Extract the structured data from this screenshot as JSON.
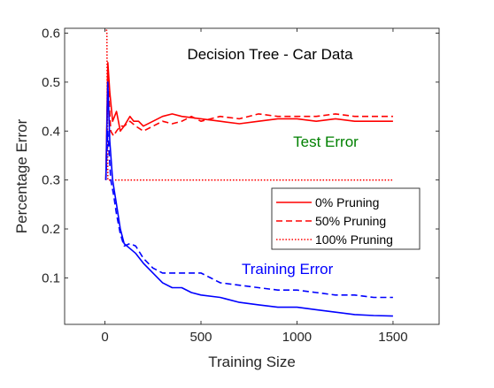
{
  "chart_data": {
    "type": "line",
    "title": "Decision Tree - Car Data",
    "xlabel": "Training Size",
    "ylabel": "Percentage Error",
    "xlim": [
      -210,
      1740
    ],
    "ylim": [
      0.005,
      0.61
    ],
    "xticks": [
      0,
      500,
      1000,
      1500
    ],
    "yticks": [
      0.1,
      0.2,
      0.3,
      0.4,
      0.5,
      0.6
    ],
    "grid": false,
    "legend_position": "right",
    "annotations": [
      {
        "text": "Test Error",
        "x": 1150,
        "y": 0.368,
        "color": "#008000"
      },
      {
        "text": "Training Error",
        "x": 950,
        "y": 0.108,
        "color": "#0000ff"
      }
    ],
    "series": [
      {
        "name": "0% Pruning",
        "group": "test",
        "color": "#ff0000",
        "dash": "solid",
        "x": [
          5,
          15,
          25,
          40,
          60,
          80,
          100,
          130,
          150,
          175,
          200,
          250,
          300,
          350,
          400,
          500,
          600,
          700,
          800,
          900,
          1000,
          1100,
          1200,
          1300,
          1400,
          1500
        ],
        "y": [
          0.3,
          0.54,
          0.48,
          0.42,
          0.44,
          0.4,
          0.41,
          0.43,
          0.42,
          0.42,
          0.41,
          0.42,
          0.43,
          0.435,
          0.43,
          0.425,
          0.42,
          0.415,
          0.42,
          0.425,
          0.425,
          0.42,
          0.425,
          0.42,
          0.42,
          0.42
        ]
      },
      {
        "name": "50% Pruning",
        "group": "test",
        "color": "#ff0000",
        "dash": "dashed",
        "x": [
          5,
          15,
          30,
          45,
          60,
          80,
          100,
          130,
          160,
          200,
          250,
          300,
          350,
          400,
          450,
          500,
          600,
          700,
          800,
          900,
          1000,
          1100,
          1200,
          1300,
          1400,
          1500
        ],
        "y": [
          0.3,
          0.51,
          0.4,
          0.39,
          0.4,
          0.41,
          0.41,
          0.42,
          0.41,
          0.4,
          0.41,
          0.42,
          0.415,
          0.42,
          0.43,
          0.42,
          0.43,
          0.425,
          0.435,
          0.43,
          0.43,
          0.43,
          0.435,
          0.43,
          0.43,
          0.43
        ]
      },
      {
        "name": "100% Pruning",
        "group": "test",
        "color": "#ff0000",
        "dash": "dotted",
        "x": [
          5,
          10,
          15,
          25,
          35,
          50,
          100,
          200,
          500,
          1000,
          1500
        ],
        "y": [
          0.62,
          0.6,
          0.3,
          0.3,
          0.3,
          0.3,
          0.3,
          0.3,
          0.3,
          0.3,
          0.3
        ]
      },
      {
        "name": "0% Pruning",
        "group": "train",
        "color": "#0000ff",
        "dash": "solid",
        "x": [
          5,
          15,
          25,
          40,
          60,
          80,
          100,
          130,
          160,
          200,
          250,
          300,
          350,
          400,
          450,
          500,
          600,
          700,
          800,
          900,
          1000,
          1100,
          1200,
          1300,
          1400,
          1500
        ],
        "y": [
          0.3,
          0.5,
          0.38,
          0.3,
          0.25,
          0.2,
          0.17,
          0.16,
          0.15,
          0.13,
          0.11,
          0.09,
          0.08,
          0.08,
          0.07,
          0.065,
          0.06,
          0.05,
          0.045,
          0.04,
          0.04,
          0.035,
          0.03,
          0.025,
          0.023,
          0.022
        ]
      },
      {
        "name": "50% Pruning",
        "group": "train",
        "color": "#0000ff",
        "dash": "dashed",
        "x": [
          5,
          15,
          30,
          45,
          60,
          80,
          100,
          130,
          160,
          200,
          250,
          300,
          350,
          400,
          450,
          500,
          550,
          600,
          700,
          800,
          900,
          1000,
          1100,
          1200,
          1300,
          1400,
          1500
        ],
        "y": [
          0.3,
          0.4,
          0.3,
          0.27,
          0.23,
          0.19,
          0.165,
          0.17,
          0.165,
          0.14,
          0.12,
          0.11,
          0.11,
          0.11,
          0.11,
          0.11,
          0.1,
          0.09,
          0.085,
          0.08,
          0.075,
          0.075,
          0.07,
          0.065,
          0.065,
          0.06,
          0.06
        ]
      }
    ]
  }
}
